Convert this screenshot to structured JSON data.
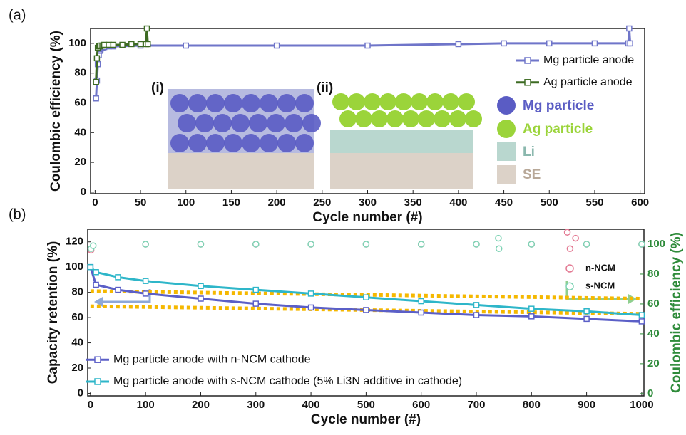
{
  "chart_data": [
    {
      "type": "line",
      "panel_label": "(a)",
      "x_label": "Cycle number (#)",
      "y_label": "Coulombic efficiency (%)",
      "xlim": [
        -5,
        605
      ],
      "ylim": [
        -1,
        110
      ],
      "xticks": [
        0,
        50,
        100,
        150,
        200,
        250,
        300,
        350,
        400,
        450,
        500,
        550,
        600
      ],
      "yticks": [
        0,
        20,
        40,
        60,
        80,
        100
      ],
      "legend": "upper right",
      "series": [
        {
          "name": "Mg particle anode",
          "color": "#6f75c9",
          "marker": "square",
          "x": [
            1,
            2,
            3,
            4,
            5,
            6,
            8,
            10,
            15,
            20,
            50,
            100,
            200,
            300,
            400,
            450,
            500,
            550,
            587,
            588,
            589
          ],
          "values": [
            63,
            75,
            86,
            92,
            95,
            96,
            97,
            97.5,
            98,
            98,
            98.5,
            98.5,
            98.5,
            98.5,
            99.5,
            100,
            100,
            100,
            100,
            110,
            100
          ]
        },
        {
          "name": "Ag particle anode",
          "color": "#3d6b22",
          "marker": "square",
          "x": [
            1,
            2,
            3,
            4,
            5,
            6,
            8,
            10,
            15,
            20,
            30,
            40,
            50,
            56,
            57,
            58
          ],
          "values": [
            74,
            90,
            97,
            98,
            98,
            98.5,
            98.5,
            99,
            99,
            99,
            99,
            99.5,
            99.5,
            99.5,
            110,
            99.5
          ]
        }
      ],
      "inset": {
        "labels": [
          "(i)",
          "(ii)"
        ],
        "legend": [
          "Mg particle",
          "Ag particle",
          "Li",
          "SE"
        ]
      }
    },
    {
      "type": "line",
      "panel_label": "(b)",
      "x_label": "Cycle number (#)",
      "y_label": "Capacity retention (%)",
      "y2_label": "Coulombic efficiency (%)",
      "y2_color": "#2e8b3a",
      "xlim": [
        -5,
        1004
      ],
      "ylim": [
        -2,
        130
      ],
      "y2lim": [
        -1.5,
        110
      ],
      "xticks": [
        0,
        100,
        200,
        300,
        400,
        500,
        600,
        700,
        800,
        900,
        1000
      ],
      "yticks": [
        0,
        20,
        40,
        60,
        80,
        100,
        120
      ],
      "y2ticks": [
        0,
        20,
        40,
        60,
        80,
        100
      ],
      "legend": "lower left",
      "legend_y2": "upper right",
      "series": [
        {
          "name": "Mg particle anode with n-NCM cathode",
          "color": "#5b5fc7",
          "marker": "square",
          "x": [
            0,
            10,
            50,
            100,
            200,
            300,
            400,
            500,
            600,
            700,
            800,
            900,
            1000
          ],
          "values": [
            100,
            86,
            82,
            79,
            75,
            71,
            68,
            66,
            64,
            62,
            61,
            59,
            57
          ]
        },
        {
          "name": "Mg particle anode with s-NCM cathode (5% Li3N additive in cathode)",
          "color": "#2eb6c9",
          "marker": "square",
          "x": [
            0,
            10,
            50,
            100,
            200,
            300,
            400,
            500,
            600,
            700,
            800,
            900,
            1000
          ],
          "values": [
            100,
            96,
            92,
            89,
            85,
            82,
            79,
            76,
            73,
            70,
            67,
            65,
            62
          ]
        },
        {
          "name": "n-NCM",
          "color": "#e37a93",
          "marker": "circle",
          "mode": "markers",
          "axis": "y2",
          "x": [
            1,
            100,
            200,
            300,
            400,
            500,
            600,
            700,
            800,
            865,
            870,
            880,
            900,
            1000
          ],
          "values": [
            96,
            100,
            100,
            100,
            100,
            100,
            100,
            100,
            100,
            108,
            97,
            104,
            100,
            100
          ]
        },
        {
          "name": "s-NCM",
          "color": "#7fd3b5",
          "marker": "circle",
          "mode": "markers",
          "axis": "y2",
          "x": [
            1,
            5,
            100,
            200,
            300,
            400,
            500,
            600,
            700,
            740,
            741,
            800,
            900,
            1000
          ],
          "values": [
            97,
            99,
            100,
            100,
            100,
            100,
            100,
            100,
            100,
            104,
            97,
            100,
            100,
            100
          ]
        }
      ],
      "guides": [
        {
          "color": "#f5b800",
          "x": [
            0,
            1000
          ],
          "values": [
            81,
            75
          ]
        },
        {
          "color": "#f5b800",
          "x": [
            0,
            1000
          ],
          "values": [
            69,
            63
          ]
        }
      ]
    }
  ]
}
